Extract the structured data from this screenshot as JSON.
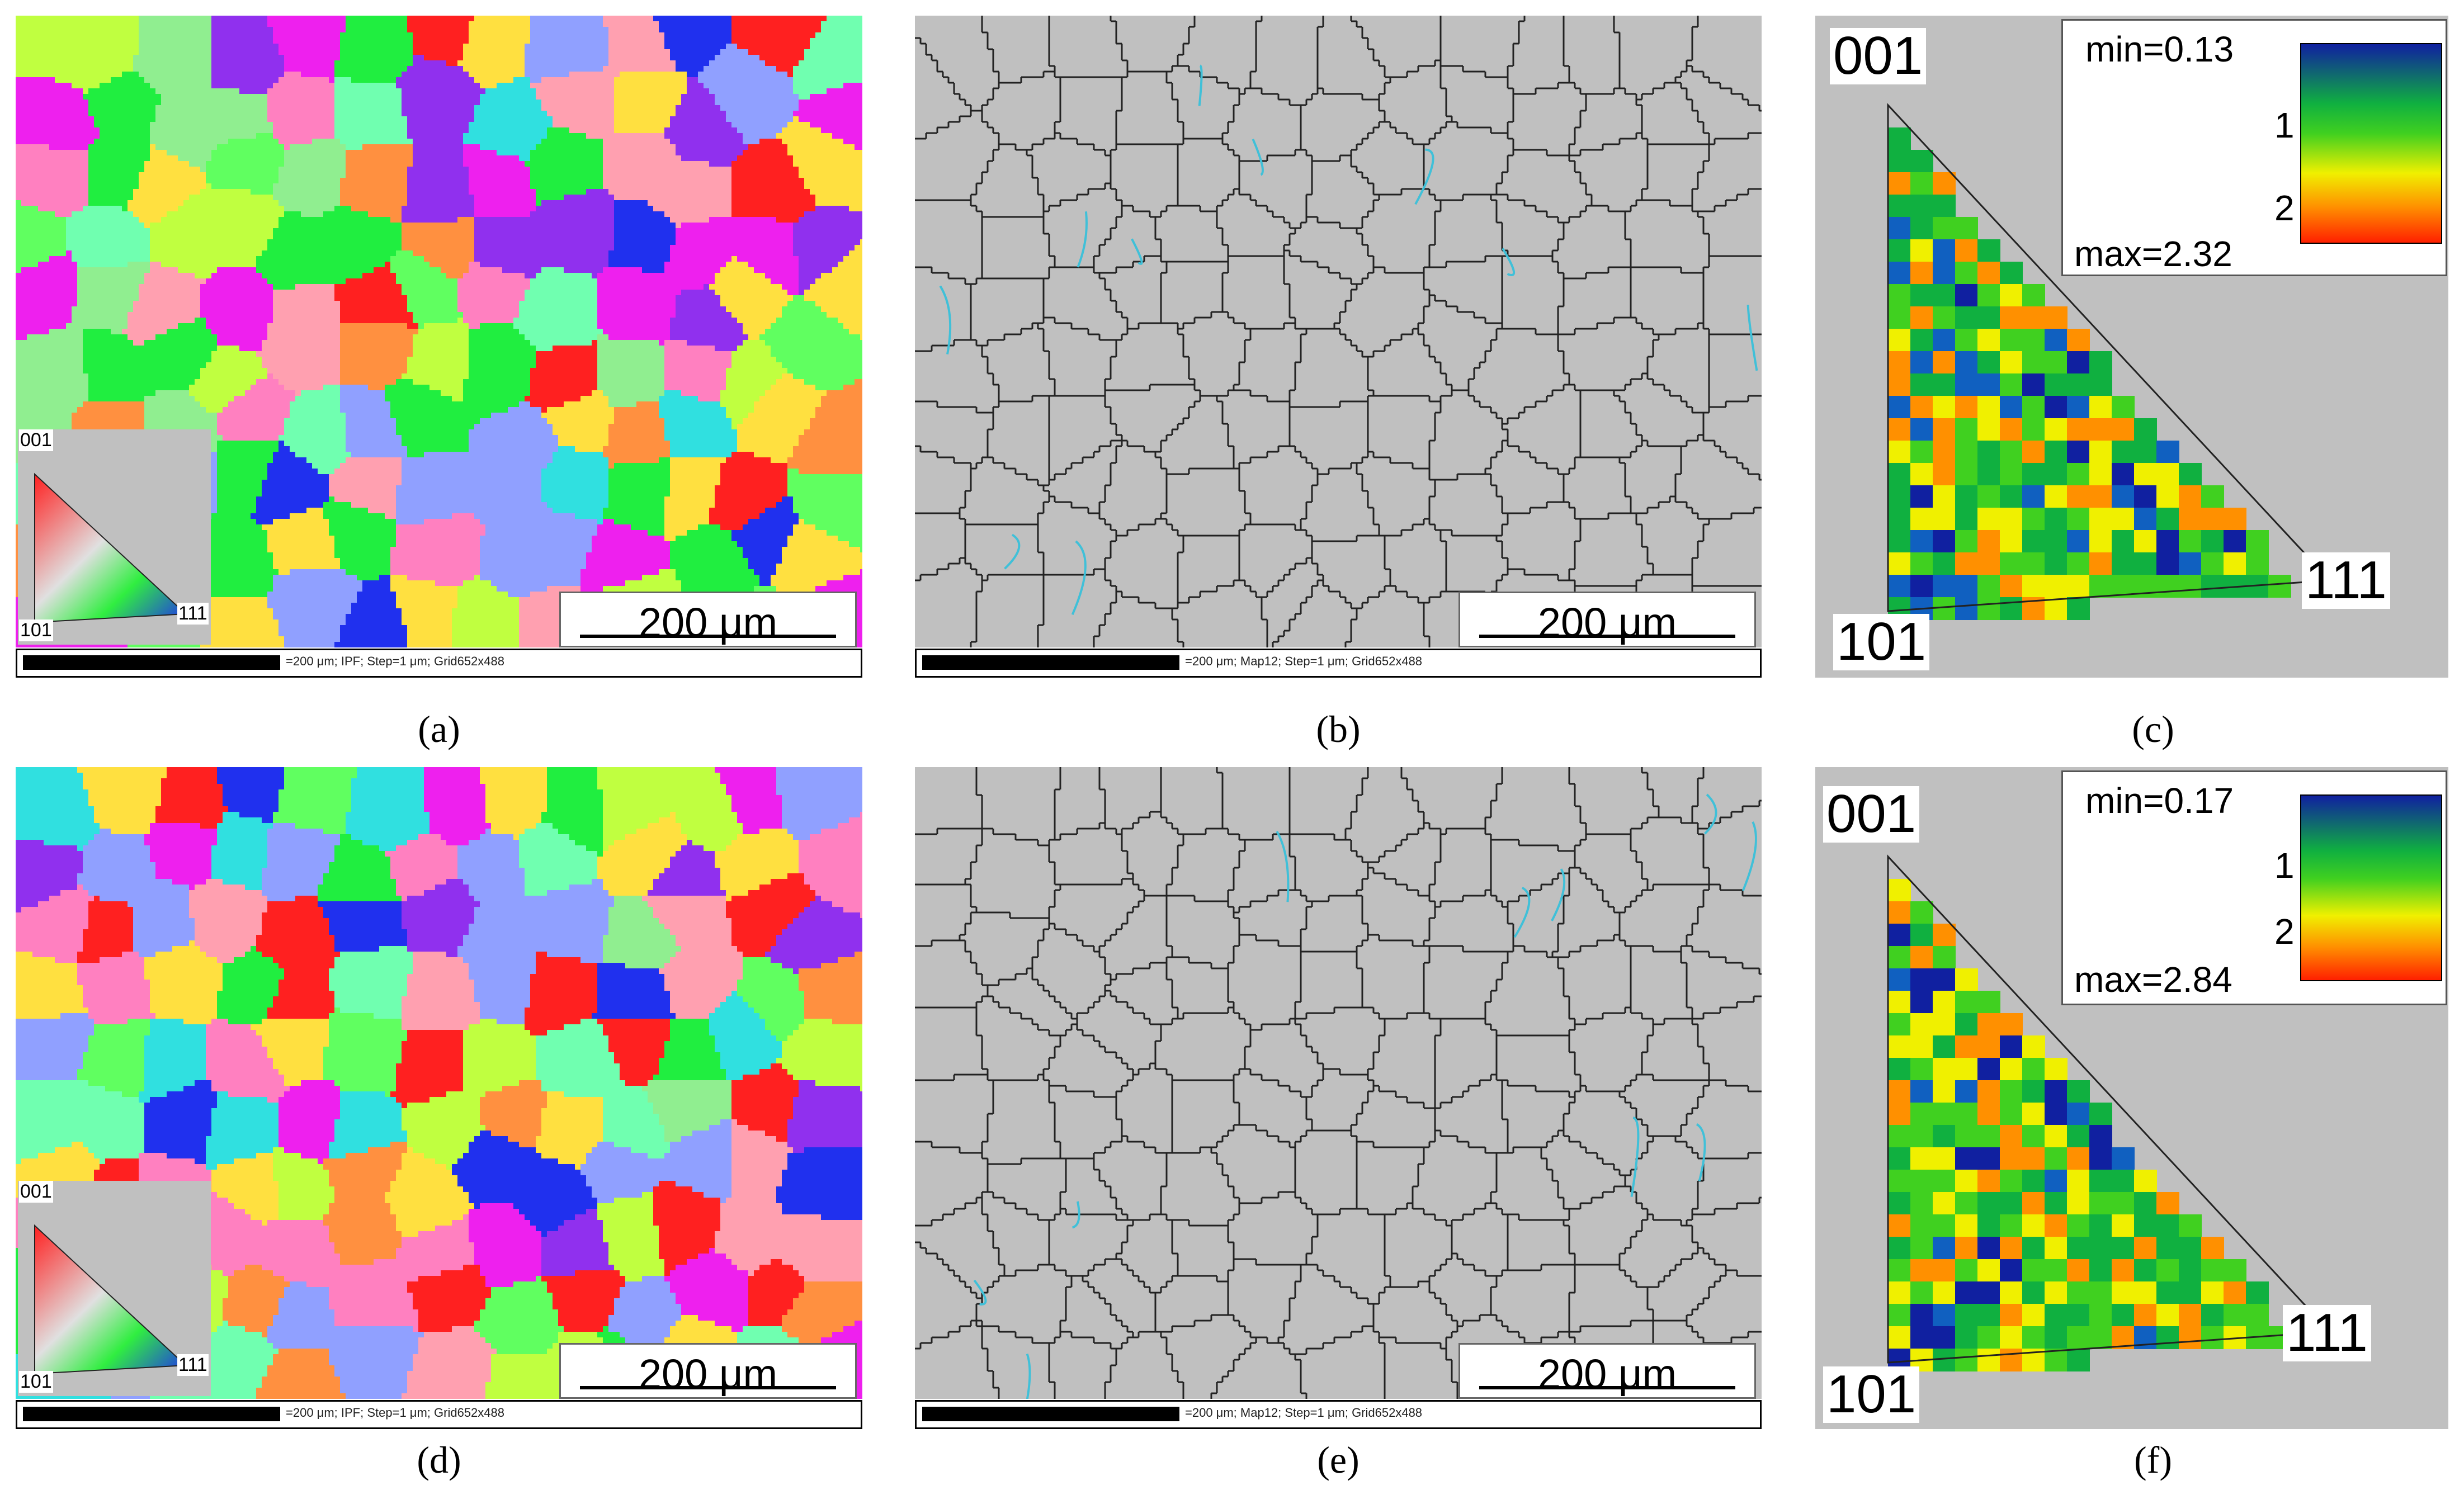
{
  "panels": {
    "a": {
      "caption": "(a)",
      "scalebar": "200 μm",
      "status": "=200 μm; IPF; Step=1 μm; Grid652x488",
      "inset_labels": [
        "001",
        "101",
        "111"
      ]
    },
    "b": {
      "caption": "(b)",
      "scalebar": "200 μm",
      "status": "=200 μm; Map12; Step=1 μm; Grid652x488"
    },
    "c": {
      "caption": "(c)",
      "pole_labels": [
        "001",
        "101",
        "111"
      ],
      "legend": {
        "min": "min=0.13",
        "max": "max=2.32",
        "tick1": "1",
        "tick2": "2"
      }
    },
    "d": {
      "caption": "(d)",
      "scalebar": "200 μm",
      "status": "=200 μm; IPF; Step=1 μm; Grid652x488",
      "inset_labels": [
        "001",
        "101",
        "111"
      ]
    },
    "e": {
      "caption": "(e)",
      "scalebar": "200 μm",
      "status": "=200 μm; Map12; Step=1 μm; Grid652x488"
    },
    "f": {
      "caption": "(f)",
      "pole_labels": [
        "001",
        "101",
        "111"
      ],
      "legend": {
        "min": "min=0.17",
        "max": "max=2.84",
        "tick1": "1",
        "tick2": "2"
      }
    }
  },
  "colors": {
    "grain_palette": [
      "#ff2020",
      "#20ee40",
      "#2030ee",
      "#ee20ee",
      "#30e0e0",
      "#ffe040",
      "#ff9040",
      "#9030ee",
      "#90ee90",
      "#90a0ff",
      "#ff80c0",
      "#60ff60",
      "#ffa0b0",
      "#70ffb0",
      "#c0ff40"
    ],
    "boundary_bg": "#c0c0c0",
    "high_angle_boundary": "#222222",
    "low_angle_boundary": "#40c0d8",
    "texture_scale": [
      "#1020a0",
      "#1060c0",
      "#10b040",
      "#40d020",
      "#f0f000",
      "#ff9000",
      "#ff2000"
    ]
  }
}
